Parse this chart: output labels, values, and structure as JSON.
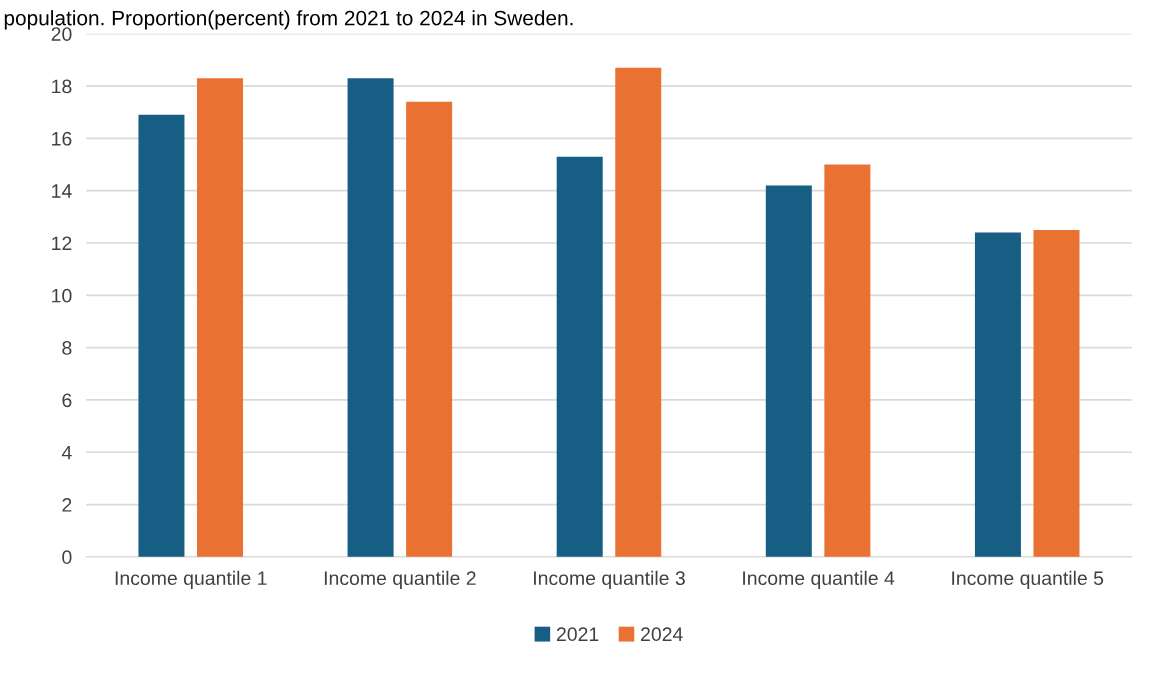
{
  "chart_data": {
    "type": "bar",
    "title": "population. Proportion(percent) from 2021 to 2024 in Sweden.",
    "categories": [
      "Income quantile 1",
      "Income quantile 2",
      "Income quantile 3",
      "Income quantile 4",
      "Income quantile 5"
    ],
    "series": [
      {
        "name": "2021",
        "color": "#165e83",
        "values": [
          16.9,
          18.3,
          15.3,
          14.2,
          12.4
        ]
      },
      {
        "name": "2024",
        "color": "#e97132",
        "values": [
          18.3,
          17.4,
          18.7,
          15.0,
          12.5
        ]
      }
    ],
    "ylim": [
      0,
      20
    ],
    "yticks": [
      0,
      2,
      4,
      6,
      8,
      10,
      12,
      14,
      16,
      18,
      20
    ],
    "grid": "y",
    "legend": "bottom"
  }
}
